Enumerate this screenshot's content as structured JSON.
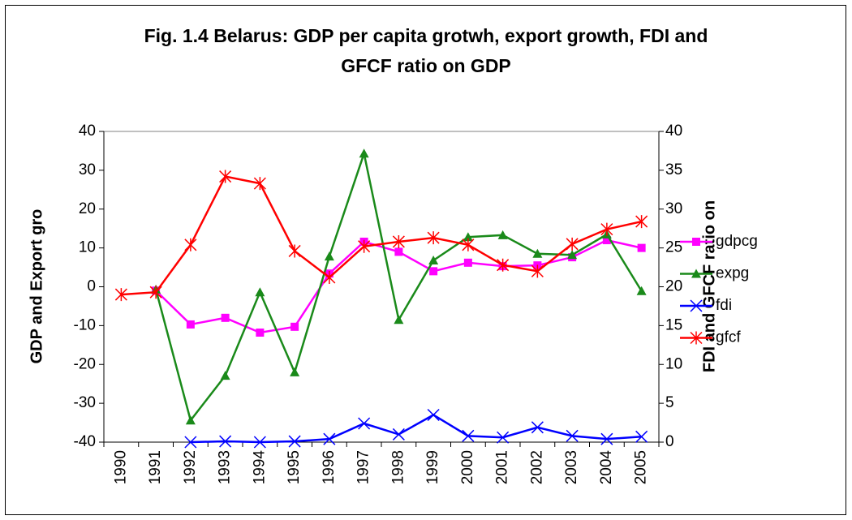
{
  "chart_data": {
    "type": "line",
    "title": [
      "Fig. 1.4 Belarus: GDP per capita grotwh, export growth, FDI and",
      "GFCF ratio on GDP"
    ],
    "ylabel": "GDP and Export gro",
    "y2label": "FDI and GFCF ratio on",
    "categories": [
      "1990",
      "1991",
      "1992",
      "1993",
      "1994",
      "1995",
      "1996",
      "1997",
      "1998",
      "1999",
      "2000",
      "2001",
      "2002",
      "2003",
      "2004",
      "2005"
    ],
    "ylim": [
      -40,
      40
    ],
    "yticks": [
      -40,
      -30,
      -20,
      -10,
      0,
      10,
      20,
      30,
      40
    ],
    "y2lim": [
      0,
      40
    ],
    "y2ticks": [
      0,
      5,
      10,
      15,
      20,
      25,
      30,
      35,
      40
    ],
    "legend": "right",
    "series": [
      {
        "name": "gdpcg",
        "color": "#ff00ff",
        "marker": "square",
        "values": [
          null,
          -1,
          -9.7,
          -8,
          -11.8,
          -10.3,
          3.4,
          11.6,
          9,
          4,
          6.2,
          5.3,
          5.5,
          7.6,
          12,
          10
        ]
      },
      {
        "name": "expg",
        "color": "#1a8a1a",
        "marker": "triangle",
        "values": [
          null,
          -0.7,
          -34.4,
          -22.9,
          -1.4,
          -22,
          7.8,
          34.3,
          -8.5,
          6.8,
          12.8,
          13.3,
          8.5,
          8.2,
          13.5,
          -1.1
        ]
      },
      {
        "name": "fdi",
        "color": "#0000ff",
        "marker": "x",
        "axis": "y2",
        "values": [
          null,
          null,
          0,
          0.1,
          0,
          0.1,
          0.4,
          2.4,
          1,
          3.5,
          0.8,
          0.6,
          1.9,
          0.8,
          0.4,
          0.7
        ]
      },
      {
        "name": "gfcf",
        "color": "#ff0000",
        "marker": "star",
        "axis": "y2",
        "values": [
          19,
          19.3,
          25.4,
          34.2,
          33.3,
          24.6,
          21.2,
          25.2,
          25.8,
          26.3,
          25.4,
          22.8,
          22,
          25.5,
          27.4,
          28.4
        ]
      }
    ]
  }
}
